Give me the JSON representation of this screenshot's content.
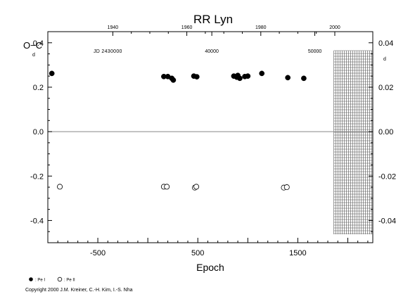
{
  "chart_data": {
    "type": "scatter",
    "title": "RR  Lyn",
    "xlabel": "Epoch",
    "ylabel": "O−C",
    "ylabel_unit_left": "d",
    "ylabel_unit_right": "d",
    "xlim": [
      -1000,
      2250
    ],
    "ylim": [
      -0.5,
      0.45
    ],
    "ylim_right": [
      -0.05,
      0.045
    ],
    "x_ticks": [
      -500,
      500,
      1500
    ],
    "x_tick_labels": [
      "-500",
      "500",
      "1500"
    ],
    "y_ticks": [
      -0.4,
      -0.2,
      0.0,
      0.2,
      0.4
    ],
    "y_tick_labels": [
      "-0.4",
      "-0.2",
      "0.0",
      "0.2",
      "0.4"
    ],
    "y2_ticks": [
      -0.04,
      -0.02,
      0.0,
      0.02,
      0.04
    ],
    "y2_tick_labels": [
      "-0.04",
      "-0.02",
      "0.00",
      "0.02",
      "0.04"
    ],
    "top_year_ticks": [
      {
        "label": "1940",
        "x": -350
      },
      {
        "label": "1960",
        "x": 390
      },
      {
        "label": "1980",
        "x": 1130
      },
      {
        "label": "2000",
        "x": 1870
      }
    ],
    "top_jd_label": "JD 2430000",
    "top_jd_ticks": [
      {
        "label": "40000",
        "x": 640
      },
      {
        "label": "50000",
        "x": 1670
      }
    ],
    "future_region": {
      "x_start": 1860,
      "x_end": 2250
    },
    "grid": false,
    "series": [
      {
        "name": "Pe I",
        "marker": "filled-circle",
        "x": [
          -960,
          160,
          200,
          240,
          255,
          460,
          490,
          860,
          890,
          900,
          920,
          970,
          1000,
          1140,
          1400,
          1560
        ],
        "y": [
          0.262,
          0.248,
          0.248,
          0.24,
          0.232,
          0.25,
          0.247,
          0.25,
          0.245,
          0.253,
          0.24,
          0.248,
          0.25,
          0.262,
          0.243,
          0.24
        ]
      },
      {
        "name": "Pe II",
        "marker": "open-circle",
        "x": [
          -880,
          160,
          190,
          470,
          485,
          1360,
          1390
        ],
        "y": [
          -0.248,
          -0.248,
          -0.248,
          -0.252,
          -0.248,
          -0.252,
          -0.25
        ]
      }
    ]
  },
  "legend": {
    "items": [
      {
        "marker": "filled-circle",
        "label": ": Pe I"
      },
      {
        "marker": "open-circle",
        "label": ": Pe II"
      }
    ]
  },
  "copyright": "Copyright 2000 J.M. Kreiner, C.-H. Kim, I.-S. Nha"
}
